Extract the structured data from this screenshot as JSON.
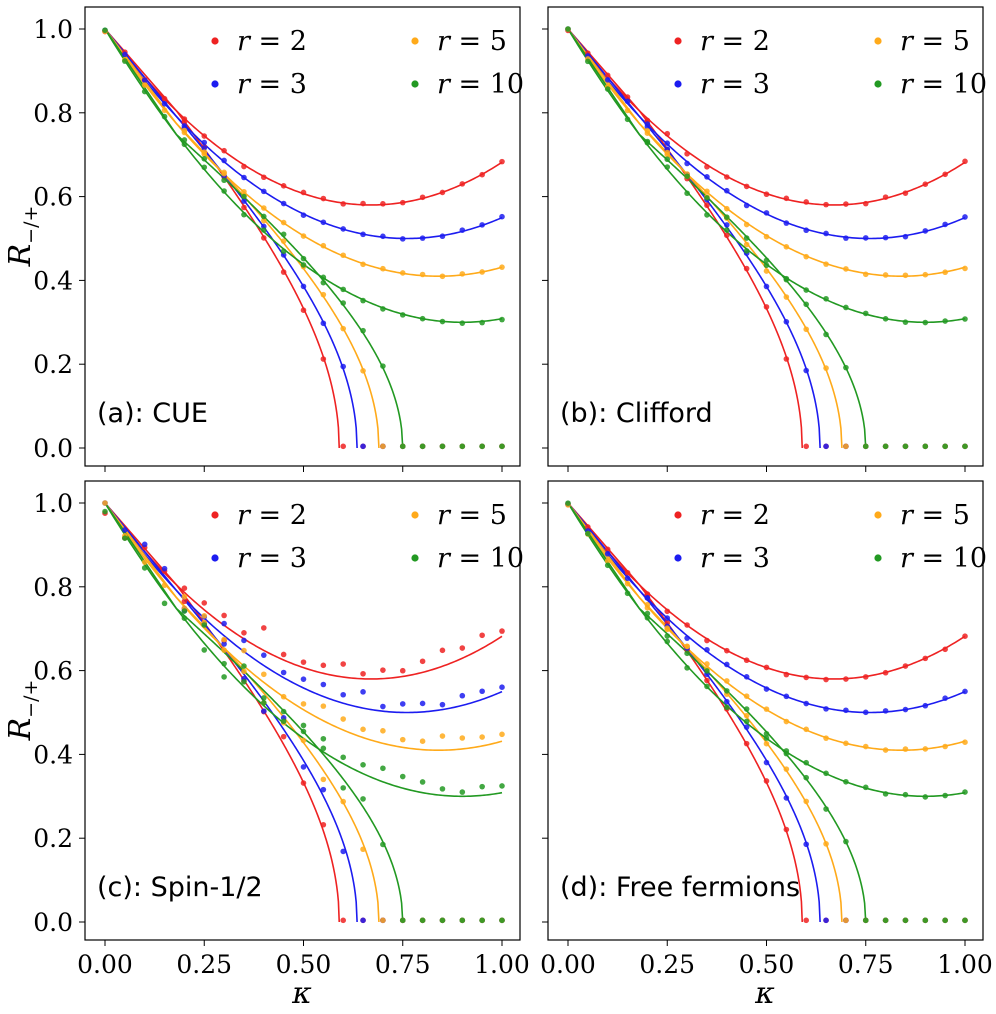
{
  "chart_data": {
    "type": "scatter",
    "layout": "2x2 grid, shared axes",
    "x_label": "κ",
    "y_label": "R−/+",
    "xlim": [
      0.0,
      1.0
    ],
    "ylim": [
      0.0,
      1.0
    ],
    "x_ticks": [
      "0.00",
      "0.25",
      "0.50",
      "0.75",
      "1.00"
    ],
    "y_ticks": [
      "0.0",
      "0.2",
      "0.4",
      "0.6",
      "0.8",
      "1.0"
    ],
    "legend_position": "top-right",
    "grid": false,
    "series": [
      {
        "name": "r = 2",
        "label_var": "r",
        "label_eq": " = 2",
        "color": "#ee2222"
      },
      {
        "name": "r = 3",
        "label_var": "r",
        "label_eq": " = 3",
        "color": "#1c1cf0"
      },
      {
        "name": "r = 5",
        "label_var": "r",
        "label_eq": " = 5",
        "color": "#ffaa1a"
      },
      {
        "name": "r = 10",
        "label_var": "r",
        "label_eq": " = 10",
        "color": "#229922"
      }
    ],
    "kappa": [
      0.0,
      0.05,
      0.1,
      0.15,
      0.2,
      0.25,
      0.3,
      0.35,
      0.4,
      0.45,
      0.5,
      0.55,
      0.6,
      0.65,
      0.7,
      0.75,
      0.8,
      0.85,
      0.9,
      0.95,
      1.0
    ],
    "theory_branches": {
      "note": "solid lines: upper and lower branches for each r",
      "r=2": {
        "upper_min": [
          0.67,
          0.58
        ],
        "end": [
          1.0,
          0.715
        ],
        "lower_zero_at": 0.59
      },
      "r=3": {
        "upper_min": [
          0.76,
          0.5
        ],
        "end": [
          1.0,
          0.585
        ],
        "lower_zero_at": 0.635
      },
      "r=5": {
        "upper_min": [
          0.84,
          0.41
        ],
        "end": [
          1.0,
          0.45
        ],
        "lower_zero_at": 0.69
      },
      "r=10": {
        "upper_min": [
          0.9,
          0.3
        ],
        "end": [
          1.0,
          0.32
        ],
        "lower_zero_at": 0.75
      }
    },
    "panels": [
      {
        "tag": "(a): CUE",
        "points": "matches theory, zero for κ beyond lower-branch endpoint"
      },
      {
        "tag": "(b): Clifford",
        "points": "matches theory"
      },
      {
        "tag": "(c): Spin-1/2",
        "points": "upper branch slightly above theory"
      },
      {
        "tag": "(d): Free fermions",
        "points": "matches theory"
      }
    ]
  },
  "panel_tags": [
    "(a): CUE",
    "(b): Clifford",
    "(c): Spin-1/2",
    "(d): Free fermions"
  ]
}
